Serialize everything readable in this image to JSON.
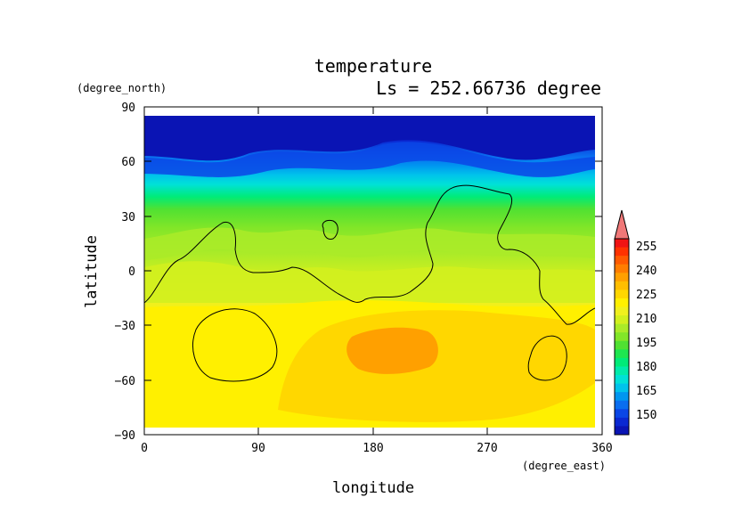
{
  "chart_data": {
    "type": "heatmap",
    "title": "temperature",
    "subtitle": "Ls = 252.66736 degree",
    "xlabel": "longitude",
    "ylabel": "latitude",
    "xunit": "(degree_east)",
    "yunit": "(degree_north)",
    "xlim": [
      0,
      360
    ],
    "ylim": [
      -90,
      90
    ],
    "xticks": [
      "0",
      "90",
      "180",
      "270",
      "360"
    ],
    "yticks": [
      "90",
      "60",
      "30",
      "0",
      "−30",
      "−60",
      "−90"
    ],
    "colorbar": {
      "labels": [
        "255",
        "240",
        "225",
        "210",
        "195",
        "180",
        "165",
        "150"
      ],
      "levels": [
        145,
        150,
        155,
        160,
        165,
        170,
        175,
        180,
        185,
        190,
        195,
        200,
        205,
        210,
        215,
        220,
        225,
        230,
        235,
        240,
        245,
        250,
        255,
        260
      ],
      "colors": [
        "#0a14b4",
        "#0a28d2",
        "#0a46e6",
        "#0a6ef0",
        "#0096f0",
        "#00c3eb",
        "#00e1d7",
        "#00ebaa",
        "#00eb78",
        "#1ee650",
        "#50e132",
        "#82e628",
        "#aaeb28",
        "#d2f01e",
        "#f0f01e",
        "#fff000",
        "#ffd700",
        "#ffbe00",
        "#ffa000",
        "#ff7d00",
        "#ff5a00",
        "#ff3200",
        "#f01414"
      ],
      "extend_color": "#f07878"
    },
    "field_description_levels": {
      "lat_band_temps": [
        {
          "lat": 85,
          "value": 148
        },
        {
          "lat": 70,
          "value": 152
        },
        {
          "lat": 65,
          "value": 162
        },
        {
          "lat": 60,
          "value": 172
        },
        {
          "lat": 50,
          "value": 182
        },
        {
          "lat": 40,
          "value": 195
        },
        {
          "lat": 30,
          "value": 206
        },
        {
          "lat": 15,
          "value": 214
        },
        {
          "lat": 0,
          "value": 218
        },
        {
          "lat": -15,
          "value": 222
        },
        {
          "lat": -30,
          "value": 226
        },
        {
          "lat": -50,
          "value": 228
        },
        {
          "lat": -80,
          "value": 226
        }
      ],
      "warm_core": {
        "lon": 200,
        "lat": -42,
        "value": 238
      }
    }
  }
}
